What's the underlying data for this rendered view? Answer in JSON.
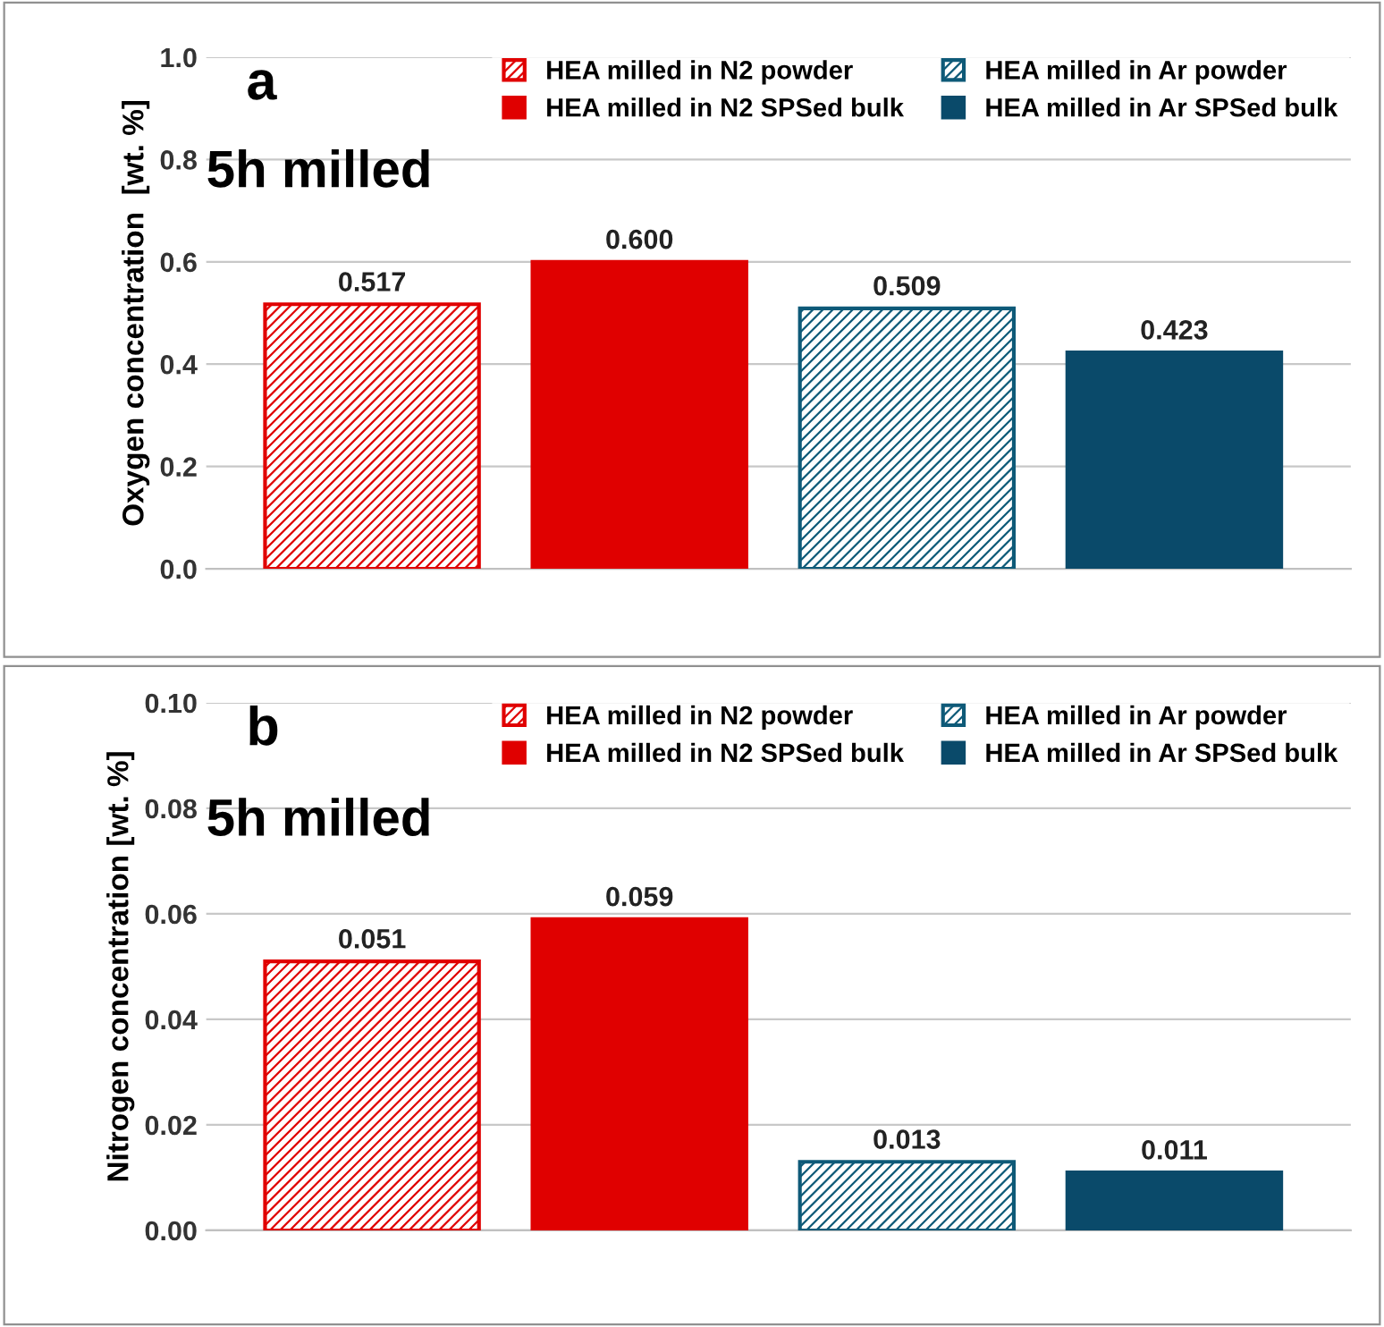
{
  "chart_data": [
    {
      "type": "bar",
      "ylabel": "Oxygen concentration  [wt. %]",
      "annotations": [
        "a",
        "5h milled"
      ],
      "categories": [
        null,
        null,
        null,
        null
      ],
      "series": [
        {
          "name": "HEA milled in N2 powder",
          "color": "#e00000",
          "values": [
            0.517,
            null,
            null,
            null
          ]
        },
        {
          "name": "HEA milled in N2 SPSed bulk",
          "color": "#e00000",
          "values": [
            null,
            0.6,
            null,
            null
          ]
        },
        {
          "name": "HEA milled in Ar powder",
          "color": "#0e5a78",
          "values": [
            null,
            null,
            0.509,
            null
          ]
        },
        {
          "name": "HEA milled in Ar SPSed bulk",
          "color": "#0a4a6a",
          "values": [
            null,
            null,
            null,
            0.423
          ]
        }
      ],
      "ylim": [
        0,
        1.0
      ],
      "yticks": [
        {
          "value": 0,
          "label": "0.0"
        },
        0.2,
        0.4,
        0.6,
        0.8,
        {
          "value": 1.0,
          "label": "1.0"
        }
      ],
      "value_labels": [
        "0.517",
        "0.600",
        "0.509",
        "0.423"
      ],
      "grid": "y",
      "legend": "top right"
    },
    {
      "type": "bar",
      "ylabel": "Nitrogen concentration [wt. %]",
      "annotations": [
        "b",
        "5h milled"
      ],
      "categories": [
        null,
        null,
        null,
        null
      ],
      "series": [
        {
          "name": "HEA milled in N2 powder",
          "color": "#e00000",
          "values": [
            0.051,
            null,
            null,
            null
          ]
        },
        {
          "name": "HEA milled in N2 SPSed bulk",
          "color": "#e00000",
          "values": [
            null,
            0.059,
            null,
            null
          ]
        },
        {
          "name": "HEA milled in Ar powder",
          "color": "#0e5a78",
          "values": [
            null,
            null,
            0.013,
            null
          ]
        },
        {
          "name": "HEA milled in Ar SPSed bulk",
          "color": "#0a4a6a",
          "values": [
            null,
            null,
            null,
            0.011
          ]
        }
      ],
      "ylim": [
        0,
        0.1
      ],
      "yticks": [
        {
          "value": 0,
          "label": "0.00"
        },
        {
          "value": 0.02,
          "label": "0.02"
        },
        {
          "value": 0.04,
          "label": "0.04"
        },
        {
          "value": 0.06,
          "label": "0.06"
        },
        {
          "value": 0.08,
          "label": "0.08"
        },
        {
          "value": 0.1,
          "label": "0.10"
        }
      ],
      "value_labels": [
        "0.051",
        "0.059",
        "0.013",
        "0.011"
      ],
      "grid": "y",
      "legend": "top right"
    }
  ]
}
